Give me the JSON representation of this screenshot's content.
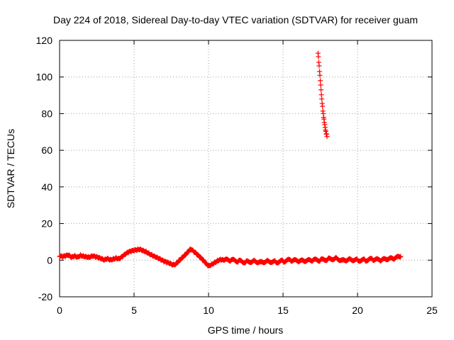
{
  "chart_data": {
    "type": "scatter",
    "title": "Day 224 of 2018, Sidereal Day-to-day VTEC variation (SDTVAR) for receiver guam",
    "xlabel": "GPS time / hours",
    "ylabel": "SDTVAR / TECUs",
    "xlim": [
      0,
      25
    ],
    "ylim": [
      -20,
      120
    ],
    "x_ticks": [
      0,
      5,
      10,
      15,
      20,
      25
    ],
    "y_ticks": [
      -20,
      0,
      20,
      40,
      60,
      80,
      100,
      120
    ],
    "grid": true,
    "legend": "none",
    "marker": "+",
    "series": [
      {
        "name": "SDTVAR",
        "color": "#ff0000",
        "points": [
          [
            0.0,
            2
          ],
          [
            0.2,
            1.5
          ],
          [
            0.4,
            2
          ],
          [
            0.6,
            2.5
          ],
          [
            0.8,
            1.5
          ],
          [
            1.0,
            2.5
          ],
          [
            1.2,
            2
          ],
          [
            1.4,
            3
          ],
          [
            1.6,
            2.5
          ],
          [
            1.8,
            2
          ],
          [
            2.0,
            1.5
          ],
          [
            2.2,
            2
          ],
          [
            2.4,
            1.5
          ],
          [
            2.6,
            1
          ],
          [
            2.8,
            0.5
          ],
          [
            3.0,
            0
          ],
          [
            3.2,
            1
          ],
          [
            3.4,
            0.5
          ],
          [
            3.6,
            1
          ],
          [
            3.8,
            1.5
          ],
          [
            4.0,
            1
          ],
          [
            4.2,
            2
          ],
          [
            4.4,
            3
          ],
          [
            4.6,
            4
          ],
          [
            4.8,
            4.5
          ],
          [
            5.0,
            5
          ],
          [
            5.2,
            5.5
          ],
          [
            5.4,
            6
          ],
          [
            5.6,
            5.5
          ],
          [
            5.8,
            5
          ],
          [
            6.0,
            4
          ],
          [
            6.2,
            3
          ],
          [
            6.4,
            2
          ],
          [
            6.6,
            1
          ],
          [
            6.8,
            0
          ],
          [
            7.0,
            -1
          ],
          [
            7.2,
            -1.5
          ],
          [
            7.4,
            -2
          ],
          [
            7.6,
            -2.5
          ],
          [
            7.8,
            -2
          ],
          [
            8.0,
            0
          ],
          [
            8.2,
            1.5
          ],
          [
            8.4,
            3
          ],
          [
            8.6,
            4.5
          ],
          [
            8.8,
            6
          ],
          [
            9.0,
            4.5
          ],
          [
            9.2,
            3
          ],
          [
            9.4,
            1.5
          ],
          [
            9.6,
            0
          ],
          [
            9.8,
            -1.5
          ],
          [
            10.0,
            -3
          ],
          [
            10.2,
            -2
          ],
          [
            10.4,
            -1
          ],
          [
            10.6,
            0
          ],
          [
            10.8,
            0.5
          ],
          [
            11.0,
            0
          ],
          [
            11.5,
            0
          ],
          [
            12.0,
            -0.5
          ],
          [
            12.5,
            -1
          ],
          [
            13.0,
            -0.5
          ],
          [
            13.5,
            -1
          ],
          [
            14.0,
            -0.5
          ],
          [
            14.5,
            -1
          ],
          [
            15.0,
            -0.5
          ],
          [
            15.5,
            0
          ],
          [
            16.0,
            -0.5
          ],
          [
            16.5,
            -0.5
          ],
          [
            17.0,
            0
          ],
          [
            17.5,
            0
          ],
          [
            18.0,
            0.5
          ],
          [
            18.5,
            1
          ],
          [
            19.0,
            0
          ],
          [
            19.5,
            0.5
          ],
          [
            20.0,
            0
          ],
          [
            20.5,
            0
          ],
          [
            21.0,
            0.5
          ],
          [
            21.5,
            0
          ],
          [
            22.0,
            0.5
          ],
          [
            22.5,
            1
          ],
          [
            22.9,
            2
          ],
          [
            17.35,
            113
          ],
          [
            17.4,
            108
          ],
          [
            17.45,
            103
          ],
          [
            17.5,
            98
          ],
          [
            17.55,
            93
          ],
          [
            17.6,
            88
          ],
          [
            17.65,
            84
          ],
          [
            17.7,
            80
          ],
          [
            17.75,
            77
          ],
          [
            17.8,
            74
          ],
          [
            17.85,
            71
          ],
          [
            17.9,
            69
          ],
          [
            17.95,
            67.5
          ]
        ]
      }
    ]
  }
}
